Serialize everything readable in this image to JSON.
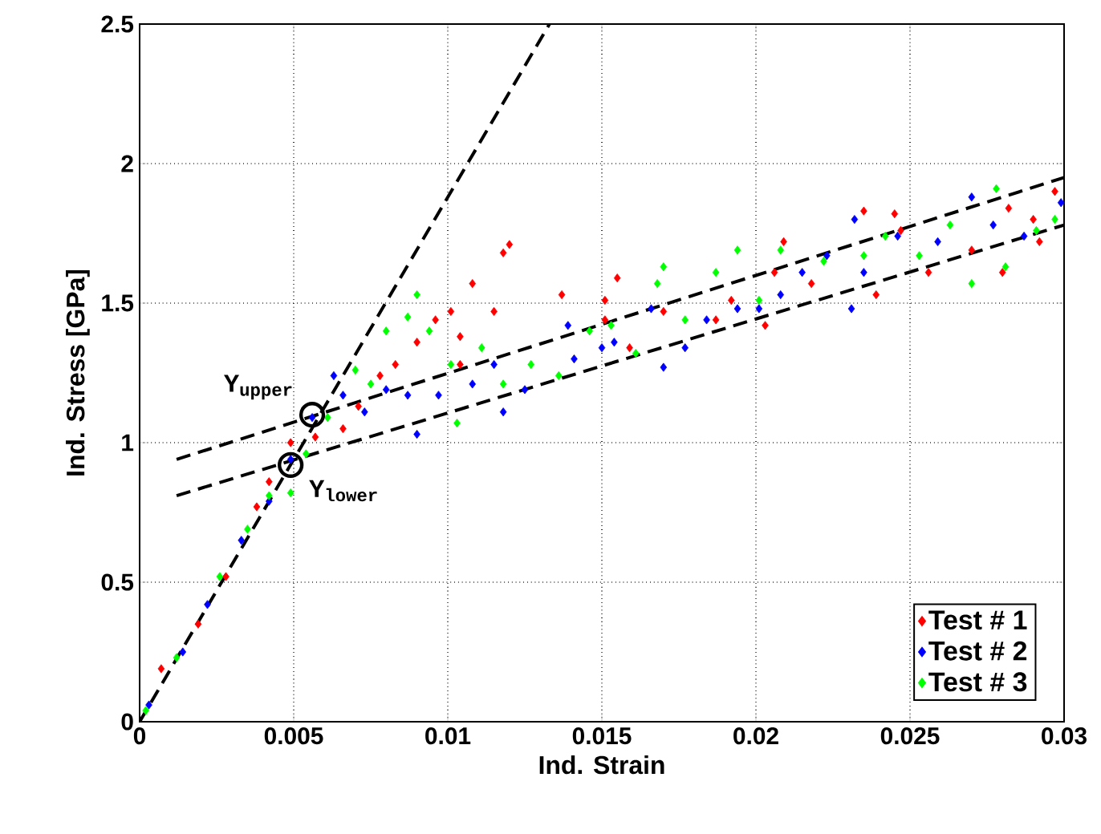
{
  "chart_data": {
    "type": "scatter",
    "xlabel": "Ind. Strain",
    "ylabel": "Ind. Stress [GPa]",
    "xlim": [
      0,
      0.03
    ],
    "ylim": [
      0,
      2.5
    ],
    "xticks": [
      0,
      0.005,
      0.01,
      0.015,
      0.02,
      0.025,
      0.03
    ],
    "yticks": [
      0,
      0.5,
      1,
      1.5,
      2,
      2.5
    ],
    "grid": true,
    "legend": "bottom right",
    "marker": "diamond",
    "series": [
      {
        "name": "Test # 1",
        "color": "#ff0000",
        "x": [
          0.0007,
          0.0019,
          0.0028,
          0.0038,
          0.0042,
          0.0049,
          0.0057,
          0.0066,
          0.0071,
          0.0078,
          0.0083,
          0.009,
          0.0096,
          0.0101,
          0.0104,
          0.0104,
          0.0108,
          0.0115,
          0.0118,
          0.012,
          0.0137,
          0.0151,
          0.0155,
          0.0151,
          0.0159,
          0.017,
          0.0187,
          0.0192,
          0.0203,
          0.0209,
          0.0206,
          0.0218,
          0.0239,
          0.0235,
          0.0245,
          0.0247,
          0.0256,
          0.027,
          0.028,
          0.0282,
          0.029,
          0.0297,
          0.0292
        ],
        "values": [
          0.19,
          0.35,
          0.52,
          0.77,
          0.86,
          1.0,
          1.02,
          1.05,
          1.13,
          1.24,
          1.28,
          1.36,
          1.44,
          1.47,
          1.38,
          1.28,
          1.57,
          1.47,
          1.68,
          1.71,
          1.53,
          1.51,
          1.59,
          1.44,
          1.34,
          1.47,
          1.44,
          1.51,
          1.42,
          1.72,
          1.61,
          1.57,
          1.53,
          1.83,
          1.82,
          1.76,
          1.61,
          1.69,
          1.61,
          1.84,
          1.8,
          1.9,
          1.72
        ]
      },
      {
        "name": "Test # 2",
        "color": "#0000ff",
        "x": [
          0.0003,
          0.0014,
          0.0022,
          0.0033,
          0.0042,
          0.0049,
          0.0056,
          0.0063,
          0.0066,
          0.0073,
          0.008,
          0.0087,
          0.009,
          0.0097,
          0.0108,
          0.0115,
          0.0118,
          0.0125,
          0.0139,
          0.0141,
          0.015,
          0.0154,
          0.0166,
          0.017,
          0.0177,
          0.0184,
          0.0194,
          0.0201,
          0.0208,
          0.0215,
          0.0223,
          0.0232,
          0.0231,
          0.0235,
          0.0246,
          0.0259,
          0.027,
          0.0277,
          0.0287,
          0.0299
        ],
        "values": [
          0.06,
          0.25,
          0.42,
          0.65,
          0.79,
          0.94,
          1.09,
          1.24,
          1.17,
          1.11,
          1.19,
          1.17,
          1.03,
          1.17,
          1.21,
          1.28,
          1.11,
          1.19,
          1.42,
          1.3,
          1.34,
          1.36,
          1.48,
          1.27,
          1.34,
          1.44,
          1.48,
          1.48,
          1.53,
          1.61,
          1.67,
          1.8,
          1.48,
          1.61,
          1.74,
          1.72,
          1.88,
          1.78,
          1.74,
          1.86
        ]
      },
      {
        "name": "Test # 3",
        "color": "#00ff00",
        "x": [
          0.0002,
          0.0012,
          0.0026,
          0.0035,
          0.0042,
          0.0049,
          0.0054,
          0.0061,
          0.007,
          0.0075,
          0.008,
          0.0087,
          0.009,
          0.0094,
          0.0101,
          0.0103,
          0.0111,
          0.0118,
          0.0127,
          0.0136,
          0.0146,
          0.0153,
          0.0161,
          0.0168,
          0.017,
          0.0177,
          0.0187,
          0.0194,
          0.0201,
          0.0208,
          0.0222,
          0.0235,
          0.0242,
          0.0253,
          0.0263,
          0.0278,
          0.027,
          0.0281,
          0.0291,
          0.0297
        ],
        "values": [
          0.04,
          0.23,
          0.52,
          0.69,
          0.81,
          0.82,
          0.96,
          1.09,
          1.26,
          1.21,
          1.4,
          1.45,
          1.53,
          1.4,
          1.28,
          1.07,
          1.34,
          1.21,
          1.28,
          1.24,
          1.4,
          1.42,
          1.32,
          1.57,
          1.63,
          1.44,
          1.61,
          1.69,
          1.51,
          1.69,
          1.65,
          1.67,
          1.74,
          1.67,
          1.78,
          1.91,
          1.57,
          1.63,
          1.76,
          1.8
        ]
      },
      {
        "type": "line",
        "color": "#000000",
        "line_style": "dashed",
        "marker": "none",
        "x": [
          0,
          0.0133
        ],
        "values": [
          0,
          2.5
        ]
      },
      {
        "type": "line",
        "color": "#000000",
        "line_style": "dashed",
        "marker": "none",
        "x": [
          0.0012,
          0.03
        ],
        "values": [
          0.94,
          1.95
        ]
      },
      {
        "type": "line",
        "color": "#000000",
        "line_style": "dashed",
        "marker": "none",
        "x": [
          0.0012,
          0.03
        ],
        "values": [
          0.81,
          1.78
        ]
      },
      {
        "color": "#000000",
        "marker": "circle",
        "x": [
          0.0056,
          0.0049
        ],
        "values": [
          1.1,
          0.92
        ]
      }
    ],
    "annotations": [
      {
        "text": "Y$_{upper}$",
        "x": 0.0056,
        "y": 1.1
      },
      {
        "text": "Y$_{lower}$",
        "x": 0.0049,
        "y": 0.92
      }
    ]
  }
}
